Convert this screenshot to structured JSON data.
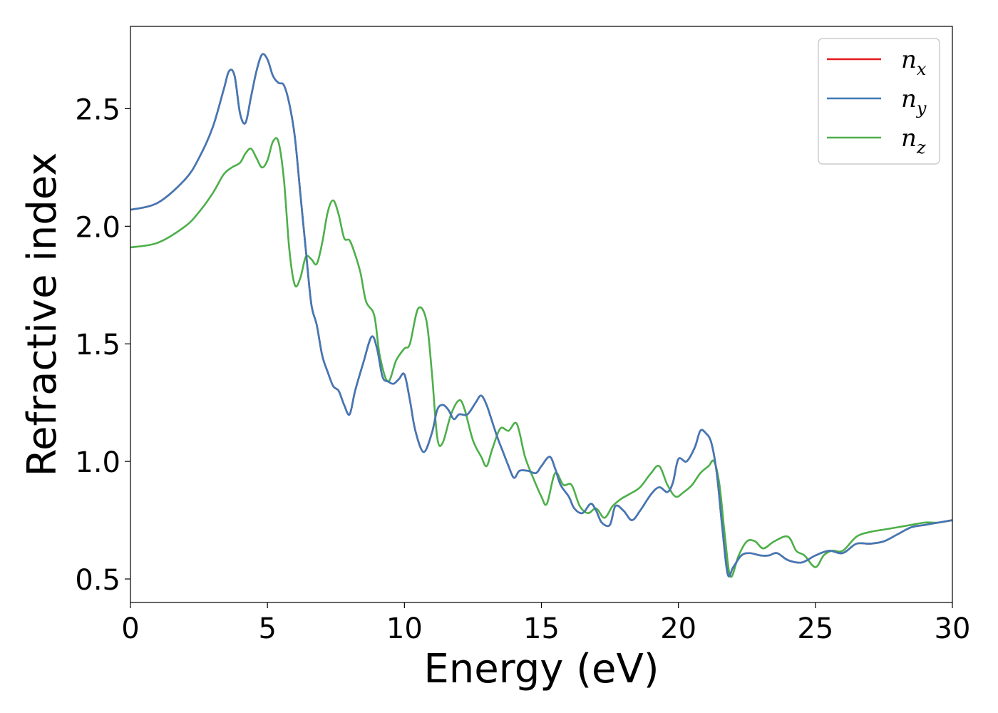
{
  "chart_data": {
    "type": "line",
    "title": "",
    "xlabel": "Energy (eV)",
    "ylabel": "Refractive index",
    "xlim": [
      0,
      30
    ],
    "ylim": [
      0.4,
      2.85
    ],
    "xticks": [
      0,
      5,
      10,
      15,
      20,
      25,
      30
    ],
    "xtick_labels": [
      "0",
      "5",
      "10",
      "15",
      "20",
      "25",
      "30"
    ],
    "yticks": [
      0.5,
      1.0,
      1.5,
      2.0,
      2.5
    ],
    "ytick_labels": [
      "0.5",
      "1.0",
      "1.5",
      "2.0",
      "2.5"
    ],
    "grid": false,
    "legend_position": "top-right",
    "series": [
      {
        "name": "x",
        "subscript": true,
        "symbol": "n",
        "color": "#e41a1c",
        "x": [
          0,
          1,
          2,
          2.5,
          3,
          3.4,
          3.6,
          3.8,
          4.0,
          4.2,
          4.4,
          4.6,
          4.8,
          5.0,
          5.2,
          5.4,
          5.6,
          5.8,
          6.0,
          6.2,
          6.4,
          6.6,
          6.8,
          7.0,
          7.2,
          7.4,
          7.6,
          7.8,
          8.0,
          8.2,
          8.5,
          8.8,
          9.0,
          9.2,
          9.4,
          9.6,
          9.8,
          10.0,
          10.2,
          10.4,
          10.7,
          11.0,
          11.2,
          11.4,
          11.6,
          11.8,
          12.0,
          12.3,
          12.6,
          12.8,
          13.0,
          13.2,
          13.4,
          13.6,
          13.8,
          14.0,
          14.2,
          14.5,
          14.8,
          15.0,
          15.3,
          15.5,
          15.7,
          16.0,
          16.2,
          16.5,
          16.8,
          17.0,
          17.2,
          17.5,
          17.7,
          18.0,
          18.3,
          18.6,
          19.0,
          19.3,
          19.6,
          19.8,
          20.0,
          20.3,
          20.6,
          20.8,
          21.0,
          21.2,
          21.4,
          21.6,
          21.8,
          22.0,
          22.3,
          22.6,
          23.0,
          23.3,
          23.6,
          24.0,
          24.5,
          25.0,
          25.5,
          26.0,
          26.5,
          27.0,
          27.5,
          28.0,
          28.5,
          29.0,
          29.5,
          30.0
        ],
        "y": [
          2.07,
          2.1,
          2.2,
          2.29,
          2.42,
          2.58,
          2.66,
          2.64,
          2.48,
          2.44,
          2.55,
          2.66,
          2.73,
          2.71,
          2.64,
          2.61,
          2.6,
          2.52,
          2.38,
          2.14,
          1.9,
          1.67,
          1.58,
          1.45,
          1.38,
          1.32,
          1.3,
          1.24,
          1.2,
          1.3,
          1.42,
          1.53,
          1.48,
          1.36,
          1.34,
          1.33,
          1.35,
          1.37,
          1.26,
          1.13,
          1.04,
          1.12,
          1.22,
          1.24,
          1.22,
          1.18,
          1.2,
          1.2,
          1.25,
          1.28,
          1.24,
          1.17,
          1.1,
          1.04,
          0.98,
          0.93,
          0.96,
          0.96,
          0.95,
          0.98,
          1.02,
          0.97,
          0.9,
          0.85,
          0.8,
          0.78,
          0.82,
          0.79,
          0.74,
          0.73,
          0.81,
          0.79,
          0.75,
          0.79,
          0.86,
          0.89,
          0.87,
          0.91,
          1.01,
          1.0,
          1.06,
          1.13,
          1.12,
          1.08,
          0.95,
          0.72,
          0.52,
          0.55,
          0.6,
          0.61,
          0.6,
          0.6,
          0.61,
          0.58,
          0.57,
          0.6,
          0.62,
          0.61,
          0.65,
          0.65,
          0.66,
          0.69,
          0.72,
          0.73,
          0.74,
          0.75
        ]
      },
      {
        "name": "y",
        "subscript": true,
        "symbol": "n",
        "color": "#3f79b8",
        "x": [
          0,
          1,
          2,
          2.5,
          3,
          3.4,
          3.6,
          3.8,
          4.0,
          4.2,
          4.4,
          4.6,
          4.8,
          5.0,
          5.2,
          5.4,
          5.6,
          5.8,
          6.0,
          6.2,
          6.4,
          6.6,
          6.8,
          7.0,
          7.2,
          7.4,
          7.6,
          7.8,
          8.0,
          8.2,
          8.5,
          8.8,
          9.0,
          9.2,
          9.4,
          9.6,
          9.8,
          10.0,
          10.2,
          10.4,
          10.7,
          11.0,
          11.2,
          11.4,
          11.6,
          11.8,
          12.0,
          12.3,
          12.6,
          12.8,
          13.0,
          13.2,
          13.4,
          13.6,
          13.8,
          14.0,
          14.2,
          14.5,
          14.8,
          15.0,
          15.3,
          15.5,
          15.7,
          16.0,
          16.2,
          16.5,
          16.8,
          17.0,
          17.2,
          17.5,
          17.7,
          18.0,
          18.3,
          18.6,
          19.0,
          19.3,
          19.6,
          19.8,
          20.0,
          20.3,
          20.6,
          20.8,
          21.0,
          21.2,
          21.4,
          21.6,
          21.8,
          22.0,
          22.3,
          22.6,
          23.0,
          23.3,
          23.6,
          24.0,
          24.5,
          25.0,
          25.5,
          26.0,
          26.5,
          27.0,
          27.5,
          28.0,
          28.5,
          29.0,
          29.5,
          30.0
        ],
        "y": [
          2.07,
          2.1,
          2.2,
          2.29,
          2.42,
          2.58,
          2.66,
          2.64,
          2.48,
          2.44,
          2.55,
          2.66,
          2.73,
          2.71,
          2.64,
          2.61,
          2.6,
          2.52,
          2.38,
          2.14,
          1.9,
          1.67,
          1.58,
          1.45,
          1.38,
          1.32,
          1.3,
          1.24,
          1.2,
          1.3,
          1.42,
          1.53,
          1.48,
          1.36,
          1.34,
          1.33,
          1.35,
          1.37,
          1.26,
          1.13,
          1.04,
          1.12,
          1.22,
          1.24,
          1.22,
          1.18,
          1.2,
          1.2,
          1.25,
          1.28,
          1.24,
          1.17,
          1.1,
          1.04,
          0.98,
          0.93,
          0.96,
          0.96,
          0.95,
          0.98,
          1.02,
          0.97,
          0.9,
          0.85,
          0.8,
          0.78,
          0.82,
          0.79,
          0.74,
          0.73,
          0.81,
          0.79,
          0.75,
          0.79,
          0.86,
          0.89,
          0.87,
          0.91,
          1.01,
          1.0,
          1.06,
          1.13,
          1.12,
          1.08,
          0.95,
          0.72,
          0.52,
          0.55,
          0.6,
          0.61,
          0.6,
          0.6,
          0.61,
          0.58,
          0.57,
          0.6,
          0.62,
          0.61,
          0.65,
          0.65,
          0.66,
          0.69,
          0.72,
          0.73,
          0.74,
          0.75
        ]
      },
      {
        "name": "z",
        "subscript": true,
        "symbol": "n",
        "color": "#4daf4a",
        "x": [
          0,
          1,
          2,
          2.5,
          3,
          3.4,
          3.7,
          4.0,
          4.2,
          4.4,
          4.6,
          4.8,
          5.0,
          5.2,
          5.4,
          5.6,
          5.8,
          6.0,
          6.2,
          6.4,
          6.6,
          6.8,
          7.0,
          7.2,
          7.4,
          7.6,
          7.8,
          8.0,
          8.2,
          8.4,
          8.6,
          8.9,
          9.1,
          9.4,
          9.7,
          10.0,
          10.2,
          10.5,
          10.8,
          11.0,
          11.2,
          11.4,
          11.7,
          12.0,
          12.2,
          12.5,
          12.8,
          13.0,
          13.2,
          13.5,
          13.8,
          14.1,
          14.4,
          14.7,
          15.0,
          15.2,
          15.5,
          15.8,
          16.1,
          16.4,
          16.7,
          17.0,
          17.3,
          17.6,
          17.9,
          18.2,
          18.6,
          19.0,
          19.3,
          19.6,
          19.9,
          20.2,
          20.5,
          20.8,
          21.1,
          21.3,
          21.5,
          21.7,
          21.9,
          22.2,
          22.5,
          22.8,
          23.1,
          23.5,
          24.0,
          24.3,
          24.6,
          25.0,
          25.3,
          25.6,
          26.0,
          26.5,
          27.0,
          27.5,
          28.0,
          28.5,
          29.0,
          29.5,
          30.0
        ],
        "y": [
          1.91,
          1.93,
          2.0,
          2.06,
          2.14,
          2.22,
          2.25,
          2.27,
          2.31,
          2.33,
          2.29,
          2.25,
          2.28,
          2.36,
          2.36,
          2.2,
          1.9,
          1.75,
          1.78,
          1.87,
          1.86,
          1.84,
          1.93,
          2.06,
          2.11,
          2.05,
          1.95,
          1.94,
          1.88,
          1.8,
          1.68,
          1.62,
          1.45,
          1.34,
          1.43,
          1.48,
          1.5,
          1.65,
          1.6,
          1.38,
          1.1,
          1.08,
          1.2,
          1.26,
          1.22,
          1.09,
          1.02,
          0.98,
          1.05,
          1.14,
          1.13,
          1.16,
          1.02,
          0.93,
          0.85,
          0.82,
          0.95,
          0.9,
          0.9,
          0.81,
          0.78,
          0.8,
          0.76,
          0.81,
          0.84,
          0.86,
          0.89,
          0.95,
          0.98,
          0.9,
          0.85,
          0.87,
          0.9,
          0.95,
          0.98,
          1.0,
          0.9,
          0.68,
          0.51,
          0.6,
          0.66,
          0.66,
          0.63,
          0.66,
          0.68,
          0.62,
          0.6,
          0.55,
          0.6,
          0.62,
          0.62,
          0.68,
          0.7,
          0.71,
          0.72,
          0.73,
          0.74,
          0.74,
          0.75
        ]
      }
    ]
  }
}
